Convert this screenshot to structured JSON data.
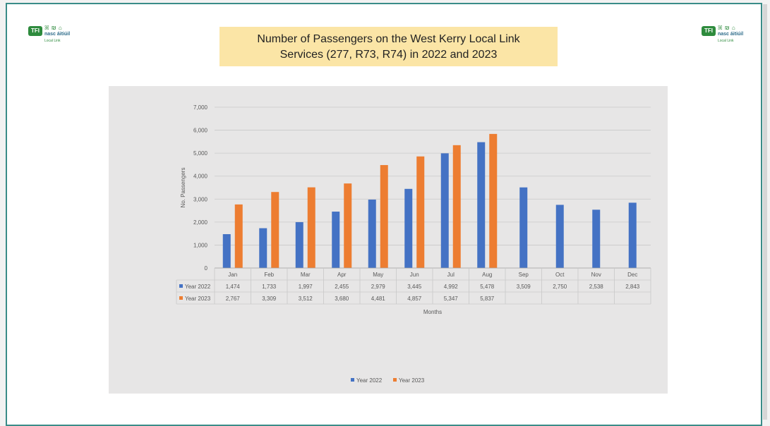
{
  "title_line1": "Number of Passengers on the West Kerry Local Link",
  "title_line2": "Services (277,  R73,  R74)  in 2022  and 2023",
  "logo": {
    "badge": "TFI",
    "line1": "ꕤ ₪ ⌂",
    "line2": "nasc áitiúil",
    "line3": "Local Link"
  },
  "colors": {
    "year2022": "#4472c4",
    "year2023": "#ed7d31",
    "accent": "#3a8c88"
  },
  "chart_data": {
    "type": "bar",
    "title": "Number of Passengers on the West Kerry Local Link Services (277, R73, R74) in 2022 and 2023",
    "xlabel": "Months",
    "ylabel": "No. Passengers",
    "ylim": [
      0,
      7000
    ],
    "yticks": [
      0,
      1000,
      2000,
      3000,
      4000,
      5000,
      6000,
      7000
    ],
    "ytick_labels": [
      "0",
      "1,000",
      "2,000",
      "3,000",
      "4,000",
      "5,000",
      "6,000",
      "7,000"
    ],
    "categories": [
      "Jan",
      "Feb",
      "Mar",
      "Apr",
      "May",
      "Jun",
      "Jul",
      "Aug",
      "Sep",
      "Oct",
      "Nov",
      "Dec"
    ],
    "series": [
      {
        "name": "Year 2022",
        "values": [
          1474,
          1733,
          1997,
          2455,
          2979,
          3445,
          4992,
          5478,
          3509,
          2750,
          2538,
          2843
        ],
        "labels": [
          "1,474",
          "1,733",
          "1,997",
          "2,455",
          "2,979",
          "3,445",
          "4,992",
          "5,478",
          "3,509",
          "2,750",
          "2,538",
          "2,843"
        ]
      },
      {
        "name": "Year 2023",
        "values": [
          2767,
          3309,
          3512,
          3680,
          4481,
          4857,
          5347,
          5837,
          null,
          null,
          null,
          null
        ],
        "labels": [
          "2,767",
          "3,309",
          "3,512",
          "3,680",
          "4,481",
          "4,857",
          "5,347",
          "5,837",
          "",
          "",
          "",
          ""
        ]
      }
    ],
    "grid": true,
    "legend_position": "bottom",
    "data_table": true
  }
}
